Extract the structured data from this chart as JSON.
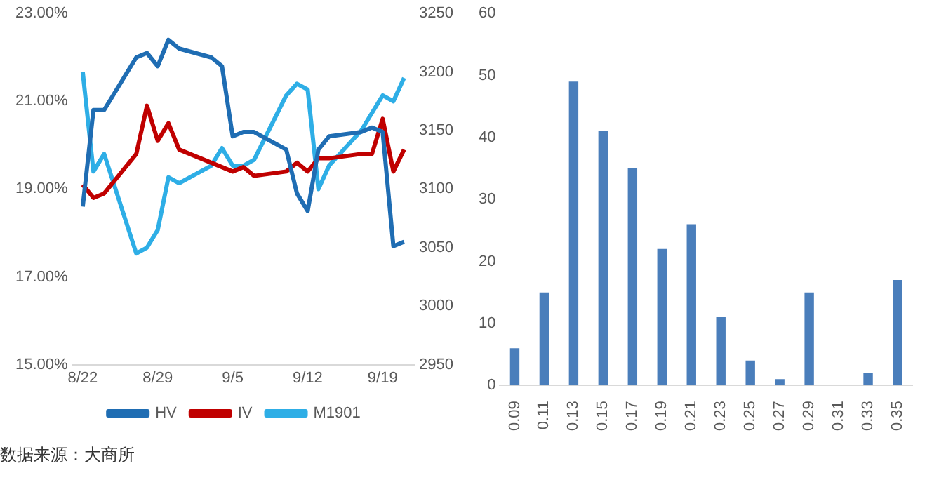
{
  "chart_data": [
    {
      "type": "line",
      "x": [
        "--08-22",
        "--08-23",
        "--08-24",
        "--08-27",
        "--08-28",
        "--08-29",
        "--08-30",
        "--08-31",
        "--09-03",
        "--09-04",
        "--09-05",
        "--09-06",
        "--09-07",
        "--09-10",
        "--09-11",
        "--09-12",
        "--09-13",
        "--09-14",
        "--09-17",
        "--09-18",
        "--09-19",
        "--09-20",
        "--09-21"
      ],
      "series": [
        {
          "name": "HV",
          "color": "#1f6db3",
          "values": [
            18.6,
            20.8,
            20.8,
            22.0,
            22.1,
            21.8,
            22.4,
            22.2,
            22.0,
            21.8,
            20.2,
            20.3,
            20.3,
            19.9,
            18.9,
            18.5,
            19.9,
            20.2,
            20.3,
            20.4,
            20.3,
            17.7,
            17.8
          ]
        },
        {
          "name": "IV",
          "color": "#c00000",
          "values": [
            19.1,
            18.8,
            18.9,
            19.8,
            20.9,
            20.1,
            20.5,
            19.9,
            19.6,
            19.5,
            19.4,
            19.5,
            19.3,
            19.4,
            19.6,
            19.4,
            19.7,
            19.7,
            19.8,
            19.8,
            20.6,
            19.4,
            19.9
          ]
        },
        {
          "name": "M1901",
          "color": "#2eaee6",
          "axis": "y2",
          "values": [
            3200,
            3115,
            3130,
            3045,
            3050,
            3065,
            3110,
            3105,
            3120,
            3135,
            3120,
            3120,
            3125,
            3180,
            3190,
            3185,
            3100,
            3120,
            3150,
            3165,
            3180,
            3175,
            3195
          ]
        }
      ],
      "xlim": [
        "--08-21",
        "--09-22"
      ],
      "xticks": [
        {
          "value": "--08-22",
          "label": "8/22"
        },
        {
          "value": "--08-29",
          "label": "8/29"
        },
        {
          "value": "--09-05",
          "label": "9/5"
        },
        {
          "value": "--09-12",
          "label": "9/12"
        },
        {
          "value": "--09-19",
          "label": "9/19"
        }
      ],
      "ylim": [
        15,
        23
      ],
      "yticks": [
        {
          "value": 15,
          "label": "15.00%"
        },
        {
          "value": 17,
          "label": "17.00%"
        },
        {
          "value": 19,
          "label": "19.00%"
        },
        {
          "value": 21,
          "label": "21.00%"
        },
        {
          "value": 23,
          "label": "23.00%"
        }
      ],
      "y2lim": [
        2950,
        3250
      ],
      "y2ticks": [
        2950,
        3000,
        3050,
        3100,
        3150,
        3200,
        3250
      ],
      "legend": "bottom",
      "marker": "none",
      "line_style": "solid",
      "annotations": [
        "数据来源：大商所"
      ]
    },
    {
      "type": "bar",
      "categories": [
        "0.09",
        "0.11",
        "0.13",
        "0.15",
        "0.17",
        "0.19",
        "0.21",
        "0.23",
        "0.25",
        "0.27",
        "0.29",
        "0.31",
        "0.33",
        "0.35"
      ],
      "values": [
        6,
        15,
        49,
        41,
        35,
        22,
        26,
        11,
        4,
        1,
        15,
        0,
        2,
        17
      ],
      "color": "#4a7ebb",
      "ylim": [
        0,
        60
      ],
      "yticks": [
        0,
        10,
        20,
        30,
        40,
        50,
        60
      ]
    }
  ]
}
